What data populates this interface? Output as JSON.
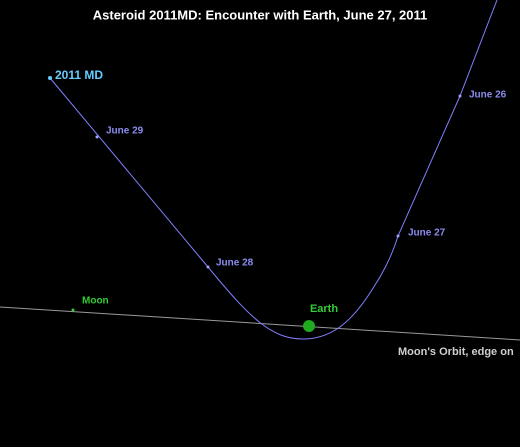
{
  "title": "Asteroid 2011MD:  Encounter with Earth, June 27, 2011",
  "asteroid": {
    "label": "2011 MD"
  },
  "dates": [
    {
      "label": "June 29"
    },
    {
      "label": "June 28"
    },
    {
      "label": "June 27"
    },
    {
      "label": "June 26"
    }
  ],
  "moon": {
    "label": "Moon"
  },
  "earth": {
    "label": "Earth"
  },
  "orbit_label": "Moon's Orbit, edge on"
}
